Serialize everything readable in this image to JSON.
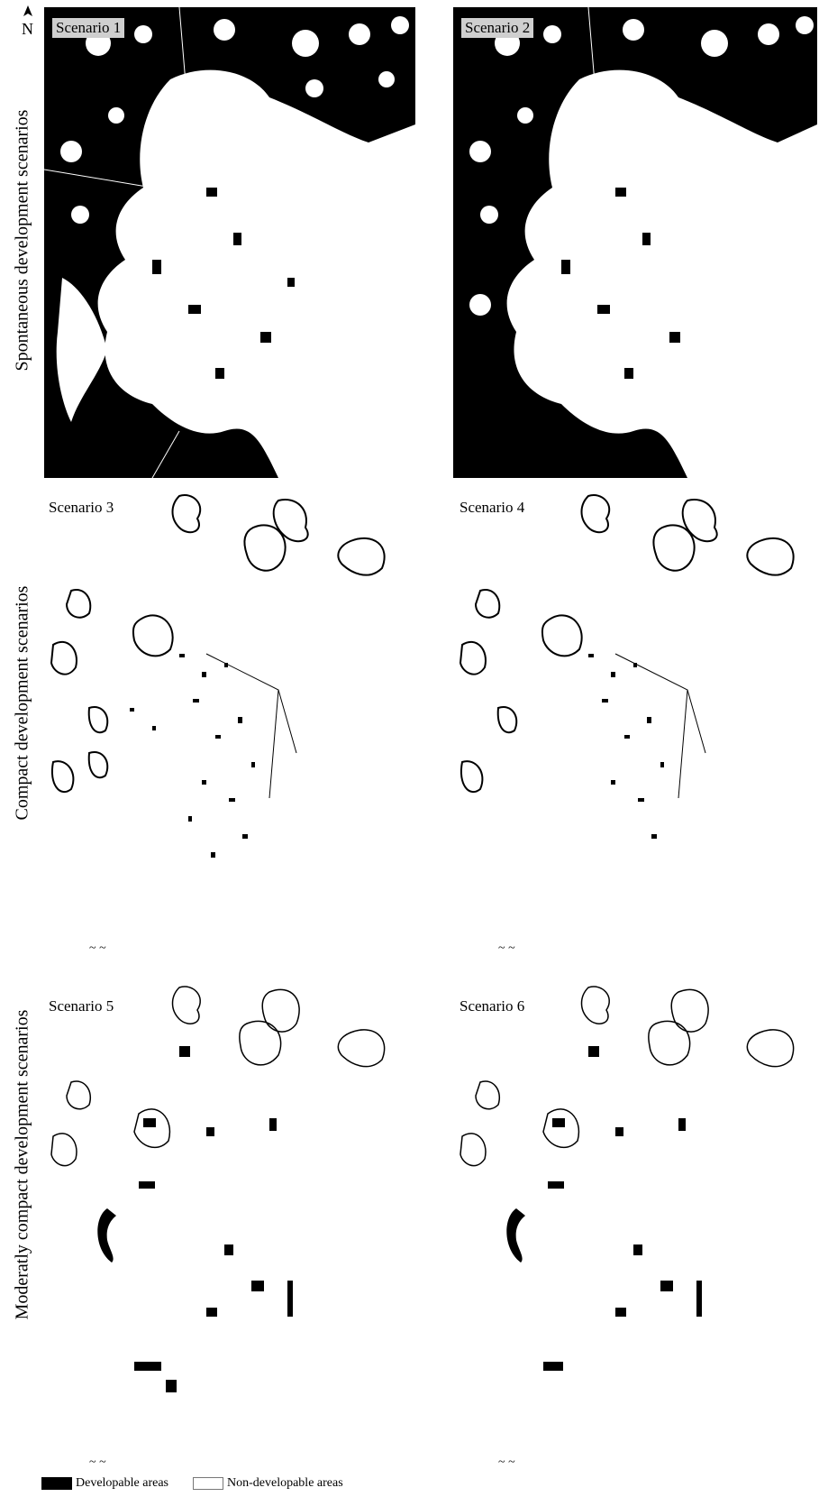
{
  "row_labels": {
    "row1": "Spontaneous development scenarios",
    "row2": "Compact development scenarios",
    "row3": "Moderatly compact development scenarios"
  },
  "panels": {
    "s1": "Scenario 1",
    "s2": "Scenario 2",
    "s3": "Scenario 3",
    "s4": "Scenario 4",
    "s5": "Scenario 5",
    "s6": "Scenario 6"
  },
  "north": "N",
  "legend": {
    "developable": "Developable areas",
    "non_developable": "Non-developable areas"
  },
  "colors": {
    "developable": "#000000",
    "non_developable": "#ffffff"
  }
}
